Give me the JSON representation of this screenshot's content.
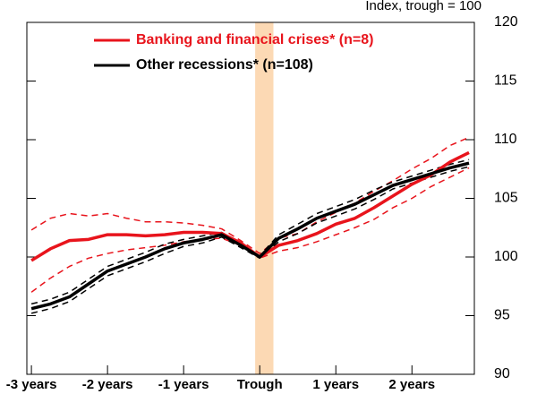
{
  "chart_data": {
    "type": "line",
    "annotation": "Index, trough = 100",
    "x": [
      -3,
      -2.75,
      -2.5,
      -2.25,
      -2,
      -1.75,
      -1.5,
      -1.25,
      -1,
      -0.75,
      -0.5,
      -0.25,
      0,
      0.25,
      0.5,
      0.75,
      1,
      1.25,
      1.5,
      1.75,
      2,
      2.25,
      2.5,
      2.75
    ],
    "series": [
      {
        "name": "Banking and financial crises* (n=8)",
        "color": "#e8141c",
        "values": [
          99.7,
          100.7,
          101.4,
          101.5,
          101.9,
          101.9,
          101.8,
          101.9,
          102.1,
          102.1,
          102.0,
          101.2,
          100.0,
          101.0,
          101.4,
          102.0,
          102.8,
          103.3,
          104.2,
          105.2,
          106.2,
          107.0,
          108.1,
          108.9
        ]
      },
      {
        "name": "Other recessions* (n=108)",
        "color": "#000000",
        "values": [
          95.6,
          96.0,
          96.6,
          97.7,
          98.8,
          99.4,
          100.0,
          100.7,
          101.2,
          101.5,
          101.9,
          101.0,
          100.0,
          101.6,
          102.4,
          103.3,
          103.9,
          104.5,
          105.3,
          106.1,
          106.6,
          107.1,
          107.6,
          108.0
        ]
      }
    ],
    "bands": [
      {
        "color": "#e8141c",
        "values": [
          102.3,
          103.3,
          103.7,
          103.5,
          103.7,
          103.3,
          103.0,
          103.0,
          102.9,
          102.7,
          102.4,
          101.4,
          100.3,
          101.6,
          102.0,
          103.0,
          103.8,
          104.6,
          105.6,
          106.5,
          107.5,
          108.4,
          109.5,
          110.2
        ]
      },
      {
        "color": "#e8141c",
        "values": [
          97.0,
          98.2,
          99.2,
          99.9,
          100.3,
          100.6,
          100.8,
          101.0,
          101.3,
          101.5,
          101.6,
          101.0,
          99.9,
          100.5,
          100.8,
          101.3,
          101.9,
          102.5,
          103.2,
          104.2,
          105.0,
          106.0,
          106.8,
          107.6
        ]
      },
      {
        "color": "#000000",
        "values": [
          96.0,
          96.4,
          97.0,
          98.1,
          99.2,
          99.8,
          100.4,
          101.1,
          101.5,
          101.8,
          102.1,
          101.2,
          100.1,
          101.9,
          102.8,
          103.7,
          104.3,
          104.9,
          105.7,
          106.4,
          106.9,
          107.4,
          107.9,
          108.3
        ]
      },
      {
        "color": "#000000",
        "values": [
          95.2,
          95.6,
          96.2,
          97.3,
          98.4,
          99.0,
          99.6,
          100.3,
          100.9,
          101.2,
          101.7,
          100.8,
          99.9,
          101.3,
          102.0,
          102.9,
          103.5,
          104.1,
          104.9,
          105.8,
          106.3,
          106.8,
          107.3,
          107.7
        ]
      }
    ],
    "shade": {
      "color": "#fcd9b4",
      "x": [
        -0.06,
        0.18
      ]
    },
    "xlim": [
      -3.06,
      2.82
    ],
    "xticks": [
      {
        "value": -3,
        "label": "-3 years"
      },
      {
        "value": -2,
        "label": "-2 years"
      },
      {
        "value": -1,
        "label": "-1 years"
      },
      {
        "value": 0,
        "label": "Trough"
      },
      {
        "value": 1,
        "label": "1 years"
      },
      {
        "value": 2,
        "label": "2 years"
      }
    ],
    "ylim": [
      90,
      120
    ],
    "yticks": [
      90,
      95,
      100,
      105,
      110,
      115,
      120
    ]
  }
}
